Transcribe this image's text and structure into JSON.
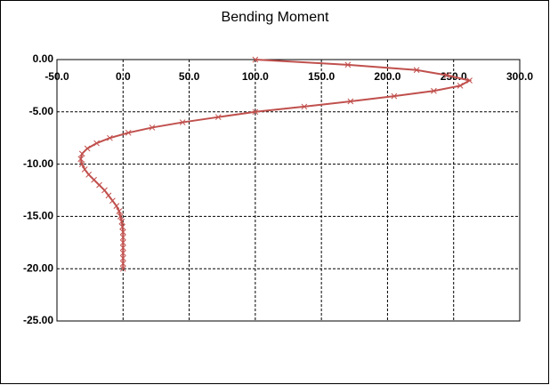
{
  "chart_data": {
    "type": "line",
    "title": "Bending Moment",
    "xlim": [
      -50,
      300
    ],
    "xticks": [
      {
        "value": -50,
        "label": "-50.0"
      },
      {
        "value": 0,
        "label": "0.0"
      },
      {
        "value": 50,
        "label": "50.0"
      },
      {
        "value": 100,
        "label": "100.0"
      },
      {
        "value": 150,
        "label": "150.0"
      },
      {
        "value": 200,
        "label": "200.0"
      },
      {
        "value": 250,
        "label": "250.0"
      },
      {
        "value": 300,
        "label": "300.0"
      }
    ],
    "ylim": [
      -25,
      0
    ],
    "yticks": [
      {
        "value": 0,
        "label": "0.00"
      },
      {
        "value": -5,
        "label": "-5.00"
      },
      {
        "value": -10,
        "label": "-10.00"
      },
      {
        "value": -15,
        "label": "-15.00"
      },
      {
        "value": -20,
        "label": "-20.00"
      },
      {
        "value": -25,
        "label": "-25.00"
      }
    ],
    "grid": true,
    "series": [
      {
        "color": "#c0504d",
        "x": [
          100,
          170,
          222,
          245,
          262,
          255,
          235,
          205,
          172,
          137,
          100,
          72,
          45,
          22,
          4,
          -10,
          -20,
          -27,
          -31,
          -32,
          -31,
          -29,
          -26,
          -22,
          -18,
          -14,
          -11,
          -8,
          -5,
          -3,
          -2,
          -1,
          -0.5,
          0,
          0,
          0,
          0,
          0,
          0,
          0,
          0
        ],
        "values": [
          0,
          -0.5,
          -1,
          -1.5,
          -2,
          -2.5,
          -3,
          -3.5,
          -4,
          -4.5,
          -5,
          -5.5,
          -6,
          -6.5,
          -7,
          -7.5,
          -8,
          -8.5,
          -9,
          -9.5,
          -10,
          -10.5,
          -11,
          -11.5,
          -12,
          -12.5,
          -13,
          -13.5,
          -14,
          -14.5,
          -15,
          -15.5,
          -16,
          -16.5,
          -17,
          -17.5,
          -18,
          -18.5,
          -19,
          -19.5,
          -20
        ]
      }
    ]
  }
}
